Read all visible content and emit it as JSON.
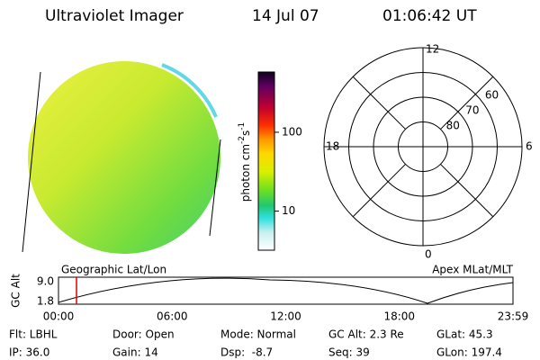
{
  "header": {
    "title": "Ultraviolet Imager",
    "date": "14 Jul 07",
    "time": "01:06:42 UT"
  },
  "colorbar": {
    "label": "photon cm",
    "exp1": "-2",
    "unit2": "s",
    "exp2": "-1",
    "lim": [
      3.2,
      580
    ],
    "log": true,
    "ticks": [
      10,
      100
    ]
  },
  "polar": {
    "min_lat": 50,
    "rings": [
      60,
      70,
      80
    ],
    "mlt_labels": {
      "top": "12",
      "right": "6",
      "bottom": "0",
      "left": "18"
    }
  },
  "orbit": {
    "left_label": "Geographic Lat/Lon",
    "right_label": "Apex MLat/MLT",
    "y_label": "GC Alt",
    "y_top": "9.0",
    "y_bottom": "1.8",
    "times": [
      "00:00",
      "06:00",
      "12:00",
      "18:00",
      "23:59"
    ]
  },
  "footer": {
    "rows": [
      [
        "Flt: LBHL",
        "Door: Open",
        "Mode: Normal",
        "GC Alt: 2.3 Re",
        "GLat: 45.3"
      ],
      [
        "IP: 36.0",
        "Gain: 14",
        "Dsp:  -8.7",
        "Seq: 39",
        "GLon: 197.4"
      ]
    ]
  }
}
